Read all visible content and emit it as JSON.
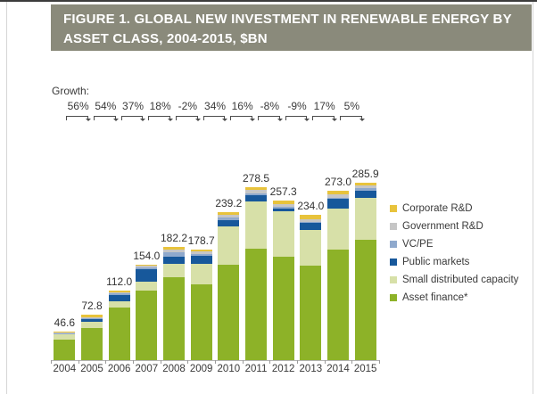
{
  "header": {
    "title_line1": "FIGURE 1. GLOBAL NEW INVESTMENT IN RENEWABLE ENERGY BY",
    "title_line2": "ASSET CLASS, 2004-2015, $BN"
  },
  "colors": {
    "title_bg": "#8a8a7b",
    "title_text": "#ffffff",
    "text": "#3a3a3a",
    "axis": "#b4b4b4",
    "bracket": "#4c4c4c"
  },
  "chart_data": {
    "type": "bar",
    "stacked": true,
    "title": "FIGURE 1. GLOBAL NEW INVESTMENT IN RENEWABLE ENERGY BY ASSET CLASS, 2004-2015, $BN",
    "categories": [
      2004,
      2005,
      2006,
      2007,
      2008,
      2009,
      2010,
      2011,
      2012,
      2013,
      2014,
      2015
    ],
    "series": [
      {
        "name": "Asset finance*",
        "color": "#8db228",
        "values": [
          33.4,
          52.3,
          84.4,
          112.0,
          133.2,
          121.5,
          153.4,
          180.0,
          166.6,
          152.9,
          178.4,
          193.4
        ]
      },
      {
        "name": "Small distributed capacity",
        "color": "#d7e0a8",
        "values": [
          8.6,
          10.2,
          9.9,
          13.9,
          22.4,
          33.3,
          61.5,
          76.0,
          73.8,
          57.3,
          66.3,
          67.4
        ]
      },
      {
        "name": "Public markets",
        "color": "#17589b",
        "values": [
          0.3,
          3.8,
          10.9,
          20.7,
          11.6,
          12.9,
          11.2,
          10.4,
          4.0,
          10.8,
          15.4,
          12.8
        ]
      },
      {
        "name": "VC/PE",
        "color": "#8fa9cd",
        "values": [
          0.6,
          1.2,
          2.1,
          3.1,
          6.9,
          3.1,
          3.3,
          2.9,
          2.4,
          1.2,
          2.1,
          3.4
        ]
      },
      {
        "name": "Government R&D",
        "color": "#c6c6c6",
        "values": [
          1.9,
          2.0,
          2.1,
          2.2,
          3.9,
          4.4,
          4.6,
          4.5,
          4.8,
          5.2,
          5.5,
          4.3
        ]
      },
      {
        "name": "Corporate R&D",
        "color": "#e8c33c",
        "values": [
          1.8,
          3.3,
          2.6,
          2.1,
          4.2,
          3.5,
          5.2,
          4.7,
          5.7,
          6.6,
          5.3,
          4.6
        ]
      }
    ],
    "totals": [
      46.6,
      72.8,
      112.0,
      154.0,
      182.2,
      178.7,
      239.2,
      278.5,
      257.3,
      234.0,
      273.0,
      285.9
    ],
    "growth_label": "Growth:",
    "growth": [
      "56%",
      "54%",
      "37%",
      "18%",
      "-2%",
      "34%",
      "16%",
      "-8%",
      "-9%",
      "17%",
      "5%"
    ],
    "legend_position": "right",
    "y_axis_visible": false,
    "ylim": [
      0,
      300
    ]
  }
}
